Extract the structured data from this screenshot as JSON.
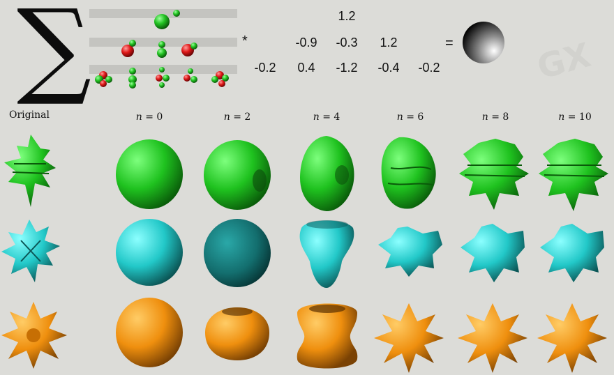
{
  "equation": {
    "sigma": "∑",
    "multiply": "*",
    "equals": "=",
    "row1": [
      "1.2"
    ],
    "row2": [
      "-0.9",
      "-0.3",
      "1.2"
    ],
    "row3": [
      "-0.2",
      "0.4",
      "-1.2",
      "-0.4",
      "-0.2"
    ]
  },
  "table": {
    "original_label": "Original",
    "n_symbol": "n",
    "columns": [
      "= 0",
      "= 2",
      "= 4",
      "= 6",
      "= 8",
      "= 10"
    ],
    "rows": [
      {
        "color": "#22cc22",
        "dark": "#0d5a0d"
      },
      {
        "color": "#2fd0d0",
        "dark": "#0e5a5a"
      },
      {
        "color": "#f0920f",
        "dark": "#7a4205"
      }
    ]
  },
  "colors": {
    "background": "#dcdcd8",
    "harmonic_positive": "#1ea81e",
    "harmonic_negative": "#e01010"
  }
}
